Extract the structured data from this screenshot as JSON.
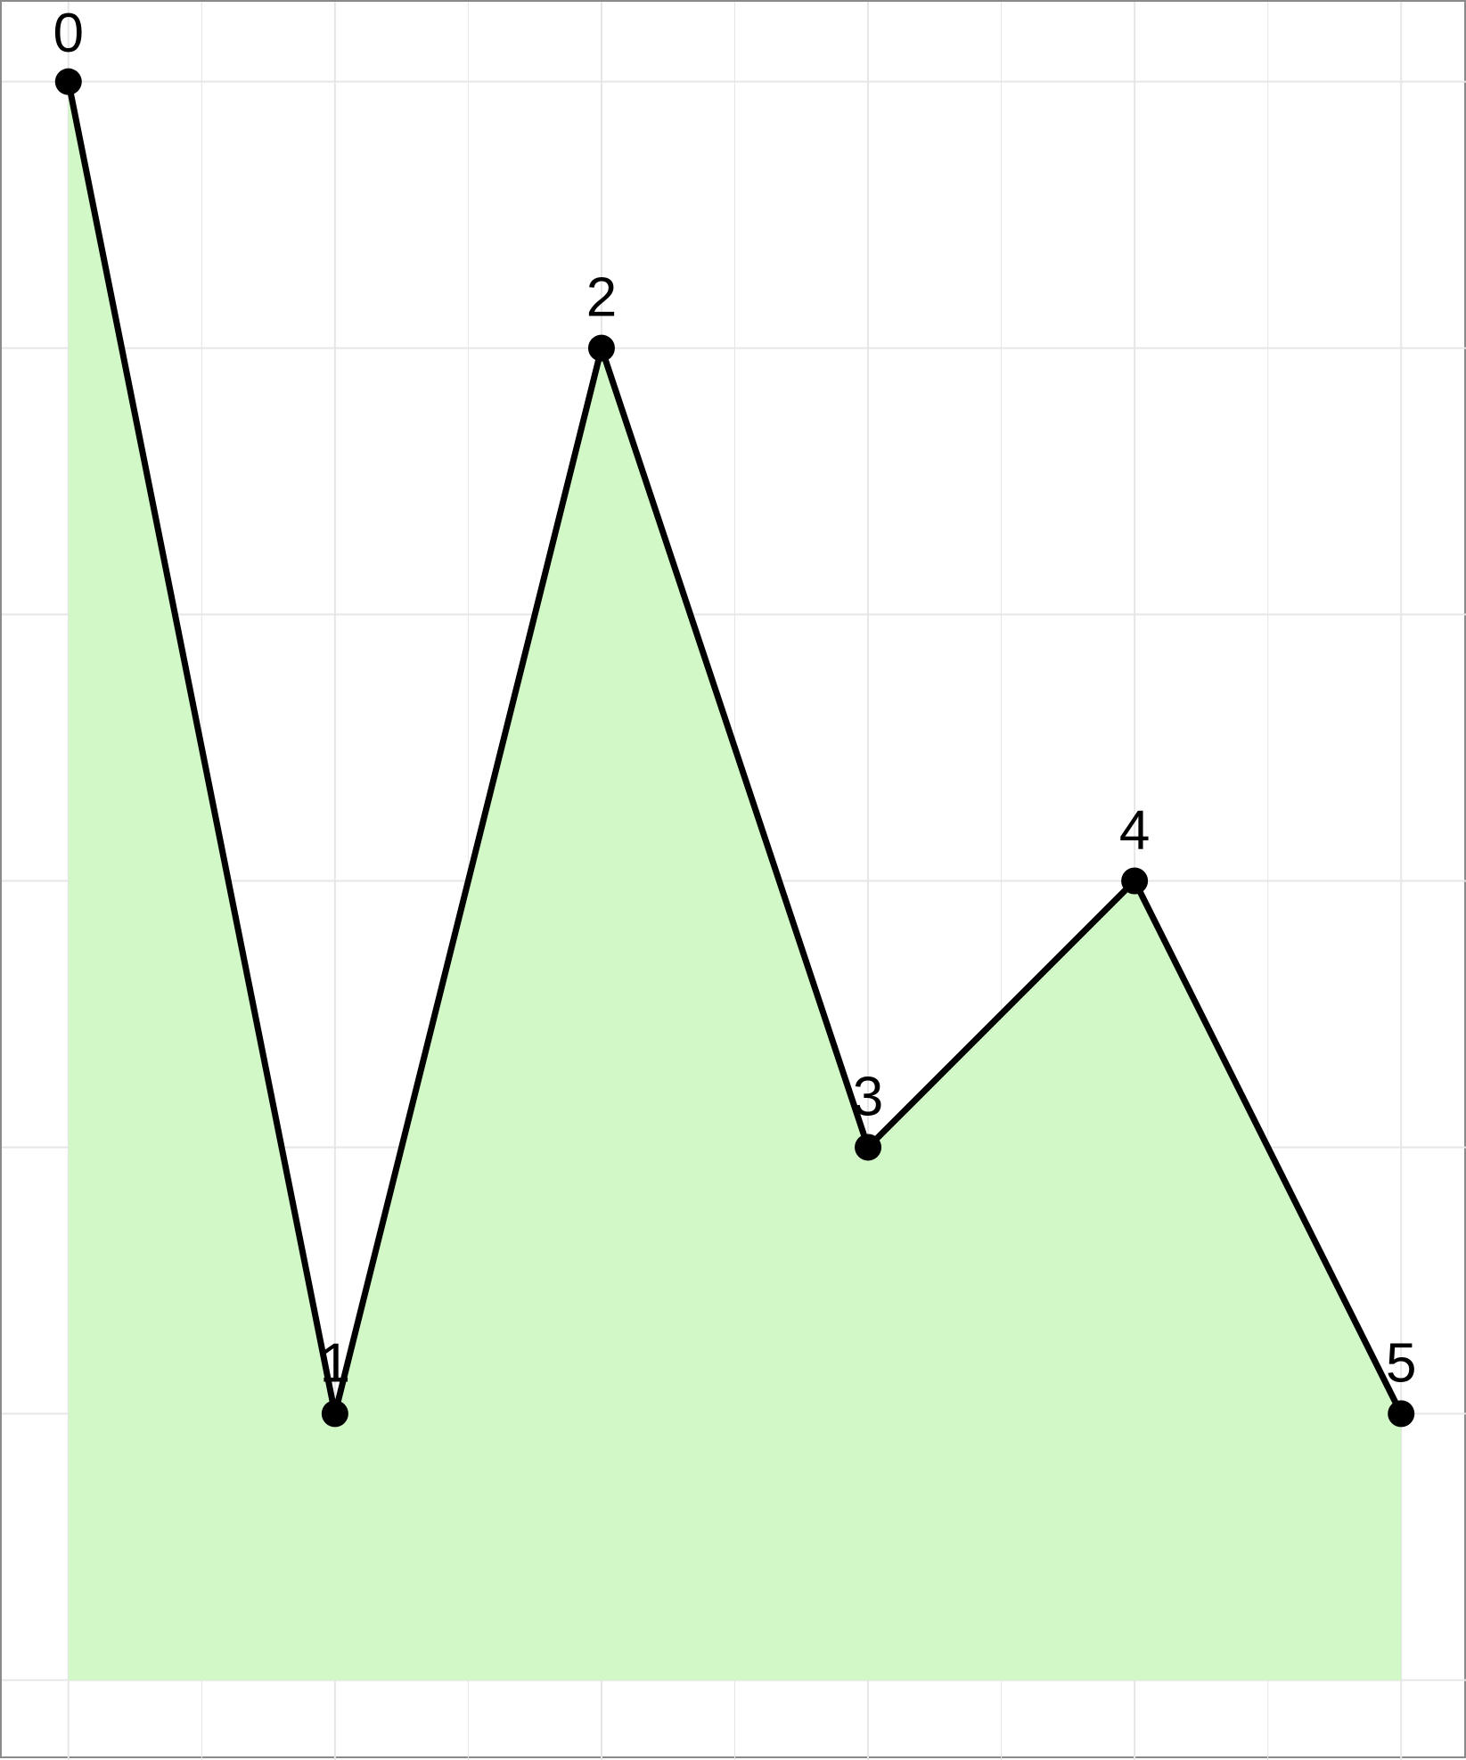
{
  "chart_data": {
    "type": "area",
    "x": [
      0,
      1,
      2,
      3,
      4,
      5
    ],
    "y": [
      6,
      1,
      5,
      2,
      3,
      1
    ],
    "data_labels": [
      "0",
      "1",
      "2",
      "3",
      "4",
      "5"
    ],
    "xlim": [
      -0.25,
      5.25
    ],
    "ylim": [
      -0.3,
      6.3
    ],
    "grid": true,
    "legend": "none",
    "title": "",
    "xlabel": "",
    "ylabel": ""
  },
  "colors": {
    "fill": "#d3f8c8",
    "line": "#000000",
    "marker": "#000000",
    "grid": "#e6e6e6",
    "frame": "#8a8a8a",
    "background": "#ffffff"
  }
}
